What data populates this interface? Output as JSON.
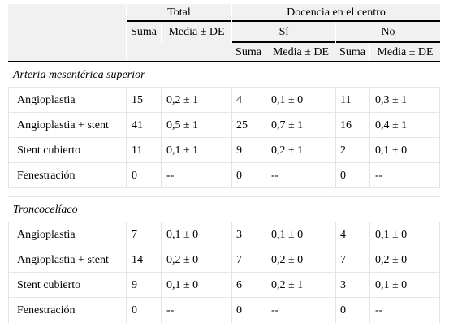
{
  "header": {
    "total": "Total",
    "docencia": "Docencia en el centro",
    "si": "Sí",
    "no": "No",
    "suma": "Suma",
    "media": "Media ± DE"
  },
  "sections": [
    {
      "title": "Arteria mesentérica superior",
      "rows": [
        {
          "label": "Angioplastia",
          "total_suma": "15",
          "total_media": "0,2 ± 1",
          "si_suma": "4",
          "si_media": "0,1 ± 0",
          "no_suma": "11",
          "no_media": "0,3 ± 1"
        },
        {
          "label": "Angioplastia + stent",
          "total_suma": "41",
          "total_media": "0,5 ± 1",
          "si_suma": "25",
          "si_media": "0,7 ± 1",
          "no_suma": "16",
          "no_media": "0,4 ± 1"
        },
        {
          "label": "Stent cubierto",
          "total_suma": "11",
          "total_media": "0,1 ± 1",
          "si_suma": "9",
          "si_media": "0,2 ± 1",
          "no_suma": "2",
          "no_media": "0,1 ± 0"
        },
        {
          "label": "Fenestración",
          "total_suma": "0",
          "total_media": "--",
          "si_suma": "0",
          "si_media": "--",
          "no_suma": "0",
          "no_media": "--"
        }
      ]
    },
    {
      "title": "Troncocelíaco",
      "rows": [
        {
          "label": "Angioplastia",
          "total_suma": "7",
          "total_media": "0,1 ± 0",
          "si_suma": "3",
          "si_media": "0,1 ± 0",
          "no_suma": "4",
          "no_media": "0,1 ± 0"
        },
        {
          "label": "Angioplastia + stent",
          "total_suma": "14",
          "total_media": "0,2 ± 0",
          "si_suma": "7",
          "si_media": "0,2 ± 0",
          "no_suma": "7",
          "no_media": "0,2 ± 0"
        },
        {
          "label": "Stent cubierto",
          "total_suma": "9",
          "total_media": "0,1 ± 0",
          "si_suma": "6",
          "si_media": "0,2 ± 1",
          "no_suma": "3",
          "no_media": "0,1 ± 0"
        },
        {
          "label": "Fenestración",
          "total_suma": "0",
          "total_media": "--",
          "si_suma": "0",
          "si_media": "--",
          "no_suma": "0",
          "no_media": "--"
        }
      ]
    }
  ]
}
